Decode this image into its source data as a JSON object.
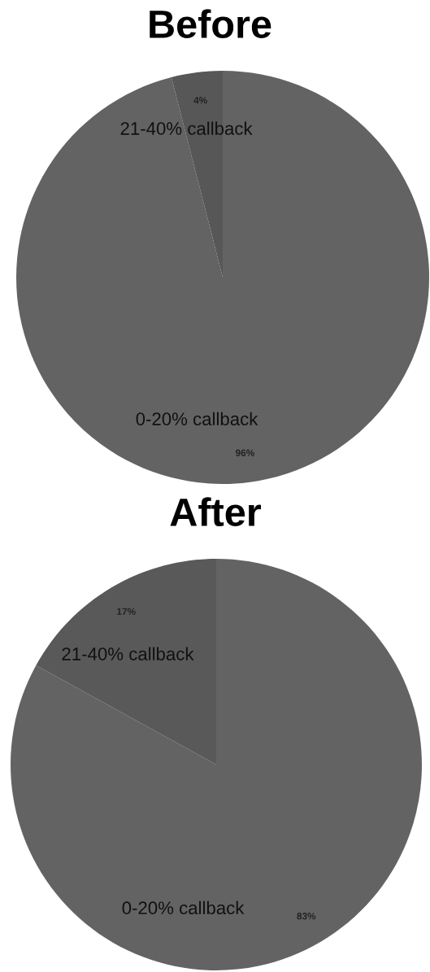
{
  "chart_data": [
    {
      "type": "pie",
      "title": "Before",
      "categories": [
        "0-20% callback",
        "21-40% callback"
      ],
      "values": [
        96,
        4
      ],
      "value_labels": [
        "96%",
        "4%"
      ],
      "colors": [
        "#636363",
        "#575757"
      ]
    },
    {
      "type": "pie",
      "title": "After",
      "categories": [
        "0-20% callback",
        "21-40% callback"
      ],
      "values": [
        83,
        17
      ],
      "value_labels": [
        "83%",
        "17%"
      ],
      "colors": [
        "#636363",
        "#595959"
      ]
    }
  ]
}
